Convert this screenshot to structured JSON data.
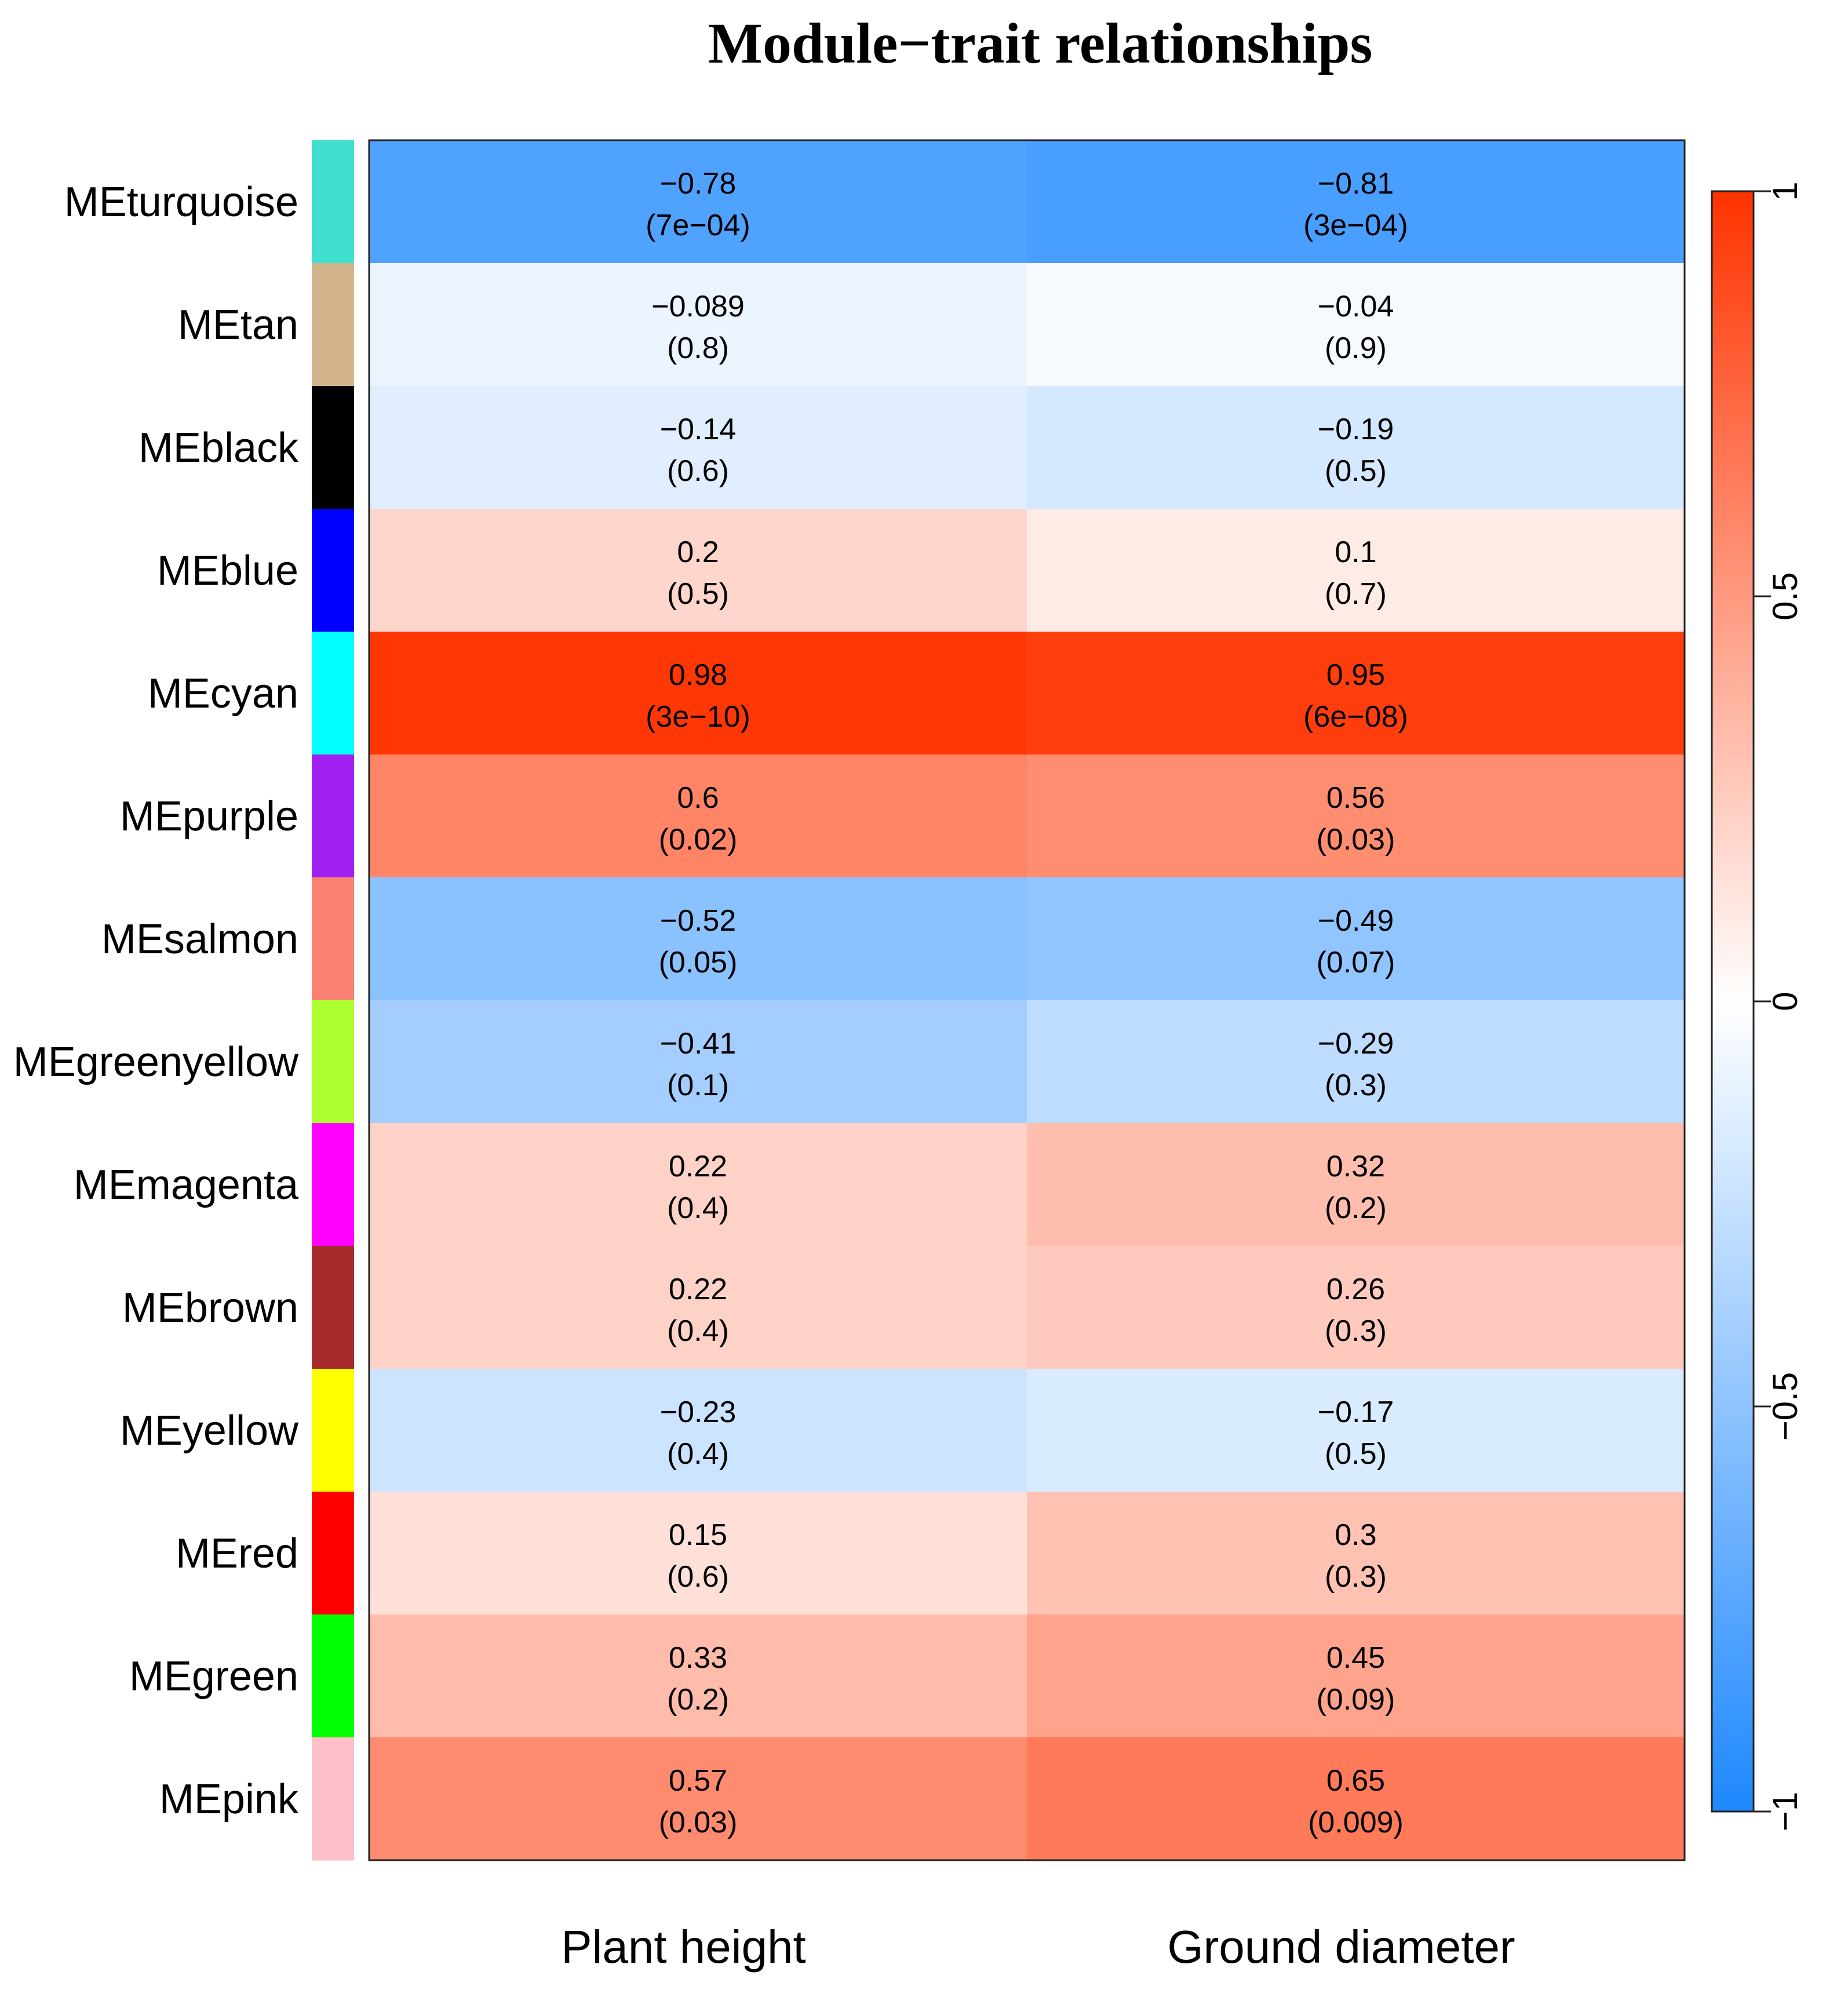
{
  "chart_data": {
    "type": "heatmap",
    "title": "Module−trait relationships",
    "columns": [
      "Plant height",
      "Ground diameter"
    ],
    "rows": [
      {
        "name": "MEturquoise",
        "color": "#40E0D0",
        "cells": [
          {
            "r": -0.78,
            "r_label": "−0.78",
            "p_label": "(7e−04)"
          },
          {
            "r": -0.81,
            "r_label": "−0.81",
            "p_label": "(3e−04)"
          }
        ]
      },
      {
        "name": "MEtan",
        "color": "#D2B48C",
        "cells": [
          {
            "r": -0.089,
            "r_label": "−0.089",
            "p_label": "(0.8)"
          },
          {
            "r": -0.04,
            "r_label": "−0.04",
            "p_label": "(0.9)"
          }
        ]
      },
      {
        "name": "MEblack",
        "color": "#000000",
        "cells": [
          {
            "r": -0.14,
            "r_label": "−0.14",
            "p_label": "(0.6)"
          },
          {
            "r": -0.19,
            "r_label": "−0.19",
            "p_label": "(0.5)"
          }
        ]
      },
      {
        "name": "MEblue",
        "color": "#0000FF",
        "cells": [
          {
            "r": 0.2,
            "r_label": "0.2",
            "p_label": "(0.5)"
          },
          {
            "r": 0.1,
            "r_label": "0.1",
            "p_label": "(0.7)"
          }
        ]
      },
      {
        "name": "MEcyan",
        "color": "#00FFFF",
        "cells": [
          {
            "r": 0.98,
            "r_label": "0.98",
            "p_label": "(3e−10)"
          },
          {
            "r": 0.95,
            "r_label": "0.95",
            "p_label": "(6e−08)"
          }
        ]
      },
      {
        "name": "MEpurple",
        "color": "#A020F0",
        "cells": [
          {
            "r": 0.6,
            "r_label": "0.6",
            "p_label": "(0.02)"
          },
          {
            "r": 0.56,
            "r_label": "0.56",
            "p_label": "(0.03)"
          }
        ]
      },
      {
        "name": "MEsalmon",
        "color": "#FA8072",
        "cells": [
          {
            "r": -0.52,
            "r_label": "−0.52",
            "p_label": "(0.05)"
          },
          {
            "r": -0.49,
            "r_label": "−0.49",
            "p_label": "(0.07)"
          }
        ]
      },
      {
        "name": "MEgreenyellow",
        "color": "#ADFF2F",
        "cells": [
          {
            "r": -0.41,
            "r_label": "−0.41",
            "p_label": "(0.1)"
          },
          {
            "r": -0.29,
            "r_label": "−0.29",
            "p_label": "(0.3)"
          }
        ]
      },
      {
        "name": "MEmagenta",
        "color": "#FF00FF",
        "cells": [
          {
            "r": 0.22,
            "r_label": "0.22",
            "p_label": "(0.4)"
          },
          {
            "r": 0.32,
            "r_label": "0.32",
            "p_label": "(0.2)"
          }
        ]
      },
      {
        "name": "MEbrown",
        "color": "#A52A2A",
        "cells": [
          {
            "r": 0.22,
            "r_label": "0.22",
            "p_label": "(0.4)"
          },
          {
            "r": 0.26,
            "r_label": "0.26",
            "p_label": "(0.3)"
          }
        ]
      },
      {
        "name": "MEyellow",
        "color": "#FFFF00",
        "cells": [
          {
            "r": -0.23,
            "r_label": "−0.23",
            "p_label": "(0.4)"
          },
          {
            "r": -0.17,
            "r_label": "−0.17",
            "p_label": "(0.5)"
          }
        ]
      },
      {
        "name": "MEred",
        "color": "#FF0000",
        "cells": [
          {
            "r": 0.15,
            "r_label": "0.15",
            "p_label": "(0.6)"
          },
          {
            "r": 0.3,
            "r_label": "0.3",
            "p_label": "(0.3)"
          }
        ]
      },
      {
        "name": "MEgreen",
        "color": "#00FF00",
        "cells": [
          {
            "r": 0.33,
            "r_label": "0.33",
            "p_label": "(0.2)"
          },
          {
            "r": 0.45,
            "r_label": "0.45",
            "p_label": "(0.09)"
          }
        ]
      },
      {
        "name": "MEpink",
        "color": "#FFC0CB",
        "cells": [
          {
            "r": 0.57,
            "r_label": "0.57",
            "p_label": "(0.03)"
          },
          {
            "r": 0.65,
            "r_label": "0.65",
            "p_label": "(0.009)"
          }
        ]
      }
    ],
    "colorscale": {
      "min": -1,
      "max": 1,
      "low_color": "#1E88FF",
      "mid_color": "#FFFFFF",
      "high_color": "#FF3300",
      "ticks": [
        -1,
        -0.5,
        0,
        0.5,
        1
      ],
      "tick_labels": [
        "−1",
        "−0.5",
        "0",
        "0.5",
        "1"
      ],
      "position": "right"
    }
  }
}
